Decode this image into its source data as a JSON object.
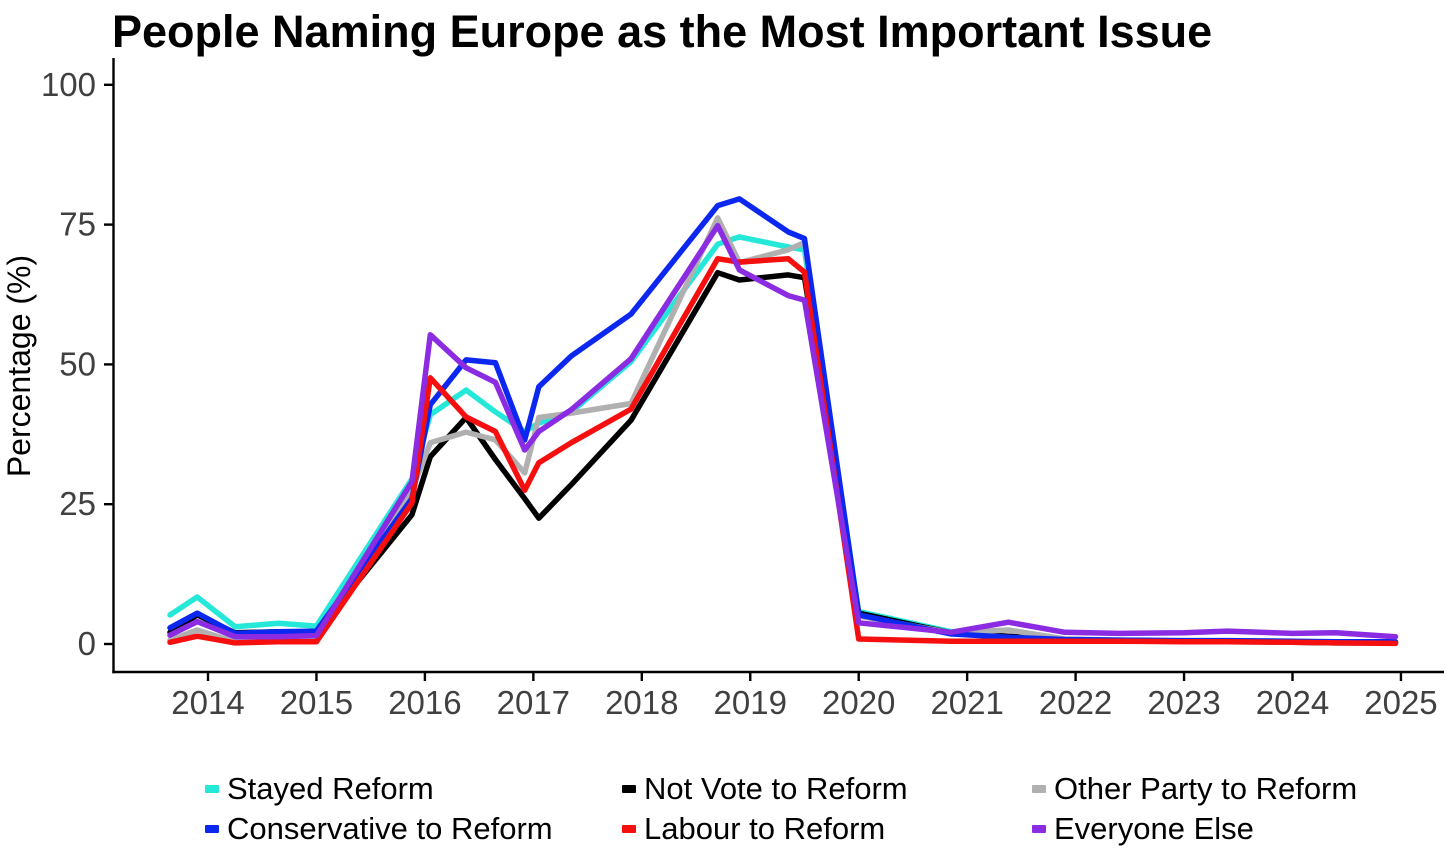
{
  "title": "People Naming Europe as the Most Important Issue",
  "y_axis": {
    "label": "Percentage (%)",
    "ticks": [
      0,
      25,
      50,
      75,
      100
    ]
  },
  "x_axis": {
    "label": "",
    "ticks": [
      2014,
      2015,
      2016,
      2017,
      2018,
      2019,
      2020,
      2021,
      2022,
      2023,
      2024,
      2025
    ]
  },
  "chart_data": {
    "type": "line",
    "title": "People Naming Europe as the Most Important Issue",
    "xlabel": "",
    "ylabel": "Percentage (%)",
    "xlim": [
      2013.3,
      2025.45
    ],
    "ylim": [
      0,
      100
    ],
    "grid": false,
    "legend_position": "bottom",
    "x": [
      2013.65,
      2013.9,
      2014.25,
      2014.65,
      2015.0,
      2015.88,
      2016.05,
      2016.38,
      2016.65,
      2016.92,
      2017.05,
      2017.35,
      2017.9,
      2018.7,
      2018.9,
      2019.35,
      2019.5,
      2020.0,
      2020.85,
      2021.38,
      2021.9,
      2022.4,
      2023.0,
      2023.4,
      2024.0,
      2024.4,
      2024.95
    ],
    "series": [
      {
        "name": "Stayed Reform",
        "color": "#25E8D8",
        "values": [
          5.2,
          8.4,
          3.1,
          3.7,
          3.2,
          29.5,
          41.0,
          45.4,
          41.5,
          38.0,
          39.5,
          41.5,
          50.5,
          71.5,
          72.8,
          71.0,
          70.5,
          5.8,
          2.2,
          1.2,
          0.8,
          0.6,
          0.5,
          0.5,
          0.4,
          0.3,
          0.3
        ]
      },
      {
        "name": "Not Vote to Reform",
        "color": "#000000",
        "values": [
          2.1,
          5.2,
          2.0,
          2.2,
          2.0,
          23.1,
          33.5,
          40.5,
          33.0,
          26.0,
          22.5,
          28.5,
          40.0,
          66.4,
          65.1,
          66.0,
          65.5,
          5.5,
          2.0,
          1.4,
          0.8,
          0.6,
          0.5,
          0.5,
          0.3,
          0.2,
          0.2
        ]
      },
      {
        "name": "Other Party to Reform",
        "color": "#B0B0B0",
        "values": [
          0.7,
          2.5,
          0.4,
          0.7,
          0.7,
          27.5,
          36.0,
          37.9,
          36.5,
          30.6,
          40.5,
          41.3,
          43.0,
          76.2,
          68.2,
          70.5,
          71.8,
          5.0,
          2.0,
          2.5,
          0.9,
          0.7,
          0.5,
          0.4,
          0.3,
          0.3,
          0.2
        ]
      },
      {
        "name": "Conservative to Reform",
        "color": "#0C28F0",
        "values": [
          2.9,
          5.5,
          1.9,
          2.2,
          2.3,
          26.0,
          42.8,
          50.8,
          50.3,
          36.5,
          46.0,
          51.5,
          59.0,
          78.4,
          79.6,
          73.7,
          72.5,
          5.2,
          1.8,
          1.2,
          0.8,
          0.7,
          0.6,
          0.6,
          0.5,
          0.4,
          0.4
        ]
      },
      {
        "name": "Labour to Reform",
        "color": "#F50F0F",
        "values": [
          0.3,
          1.4,
          0.2,
          0.4,
          0.4,
          25.2,
          47.6,
          40.6,
          38.0,
          27.5,
          32.4,
          36.0,
          42.0,
          68.9,
          68.3,
          68.9,
          66.5,
          0.9,
          0.5,
          0.5,
          0.5,
          0.5,
          0.4,
          0.4,
          0.3,
          0.2,
          0.1
        ]
      },
      {
        "name": "Everyone Else",
        "color": "#8B2BE2",
        "values": [
          1.6,
          4.0,
          1.3,
          1.3,
          1.5,
          29.0,
          55.3,
          49.4,
          46.8,
          34.7,
          38.0,
          41.9,
          51.0,
          74.8,
          66.9,
          62.3,
          61.5,
          3.8,
          2.1,
          3.9,
          2.1,
          1.9,
          2.0,
          2.3,
          1.9,
          2.0,
          1.3
        ]
      }
    ],
    "legend_rows": [
      [
        "Stayed Reform",
        "Not Vote to Reform",
        "Other Party to Reform"
      ],
      [
        "Conservative to Reform",
        "Labour to Reform",
        "Everyone Else"
      ]
    ]
  }
}
